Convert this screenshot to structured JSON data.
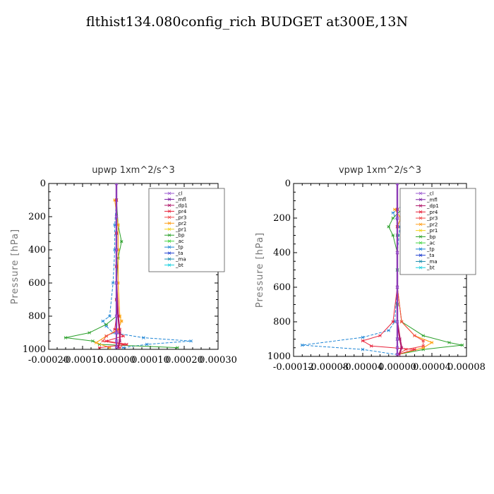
{
  "figure_title": "flthist134.080config_rich  BUDGET at300E,13N",
  "series_styles": [
    {
      "name": "_cl",
      "color": "#9b59d0"
    },
    {
      "name": "_mfl",
      "color": "#7a1fa2"
    },
    {
      "name": "_dp1",
      "color": "#b0186a"
    },
    {
      "name": "_pr4",
      "color": "#e8213a"
    },
    {
      "name": "_pr3",
      "color": "#f04848"
    },
    {
      "name": "_pr2",
      "color": "#ff9f1a"
    },
    {
      "name": "_pr1",
      "color": "#f2d21a"
    },
    {
      "name": "_bp",
      "color": "#2aa02a"
    },
    {
      "name": "_ac",
      "color": "#45d545"
    },
    {
      "name": "_tp",
      "color": "#1f86d6"
    },
    {
      "name": "_ta",
      "color": "#2040d0"
    },
    {
      "name": "_ma",
      "color": "#1f8fb0"
    },
    {
      "name": "_bt",
      "color": "#18d0e0"
    }
  ],
  "chart_data": [
    {
      "type": "line",
      "title": "upwp   1xm^2/s^3",
      "ylabel": "Pressure [hPa]",
      "xlabel": "",
      "xlim": [
        -0.0002,
        0.0003
      ],
      "ylim": [
        1000,
        0
      ],
      "xticks": [
        -0.0002,
        -0.0001,
        0.0,
        0.0001,
        0.0002,
        0.0003
      ],
      "xtick_labels": [
        "-0.00020",
        "-0.00010",
        "0.00000",
        "0.00010",
        "0.00020",
        "0.00030"
      ],
      "yticks": [
        0,
        200,
        400,
        600,
        800,
        1000
      ],
      "ytick_labels": [
        "0",
        "200",
        "400",
        "600",
        "800",
        "1000"
      ],
      "legend_position": "top-right",
      "grid": false,
      "series": [
        {
          "name": "_cl",
          "p": [
            0,
            200,
            400,
            600,
            800,
            900,
            950,
            990
          ],
          "x": [
            0,
            0,
            0,
            0,
            0,
            0,
            0,
            0
          ]
        },
        {
          "name": "_mfl",
          "p": [
            0,
            200,
            400,
            600,
            800,
            900,
            950,
            990
          ],
          "x": [
            0,
            0,
            0,
            0,
            0,
            0,
            0,
            0
          ]
        },
        {
          "name": "_dp1",
          "p": [
            0,
            200,
            400,
            600,
            800,
            900,
            950,
            990
          ],
          "x": [
            0,
            0,
            0,
            0,
            5e-06,
            1e-05,
            1e-05,
            5e-06
          ]
        },
        {
          "name": "_pr4",
          "p": [
            100,
            300,
            500,
            700,
            800,
            880,
            920,
            950,
            970,
            990
          ],
          "x": [
            0,
            0,
            0,
            0,
            0,
            -5e-06,
            2e-05,
            -3e-05,
            3e-05,
            -5e-05
          ]
        },
        {
          "name": "_pr3",
          "p": [
            100,
            300,
            500,
            700,
            800,
            880,
            920,
            950,
            970,
            990
          ],
          "x": [
            0,
            0,
            0,
            0,
            5e-06,
            1e-05,
            -3e-05,
            -4e-05,
            2e-05,
            1e-05
          ]
        },
        {
          "name": "_pr2",
          "p": [
            100,
            250,
            400,
            600,
            800,
            830,
            880,
            920,
            960,
            990
          ],
          "x": [
            -5e-06,
            5e-06,
            5e-06,
            5e-06,
            1e-05,
            1.5e-05,
            5e-06,
            -3e-05,
            -6e-05,
            -2e-05
          ]
        },
        {
          "name": "_pr1",
          "p": [
            100,
            250,
            400,
            600,
            800,
            830,
            880,
            920,
            960,
            990
          ],
          "x": [
            -5e-06,
            5e-06,
            5e-06,
            5e-06,
            1e-05,
            1.5e-05,
            5e-06,
            -3e-05,
            -6e-05,
            -2e-05
          ]
        },
        {
          "name": "_bp",
          "p": [
            100,
            250,
            350,
            450,
            600,
            800,
            850,
            900,
            930,
            950,
            970,
            990
          ],
          "x": [
            0,
            5e-06,
            1.5e-05,
            5e-06,
            0,
            0,
            -3e-05,
            -8e-05,
            -0.00015,
            -7e-05,
            -5e-05,
            0.00018
          ]
        },
        {
          "name": "_ac",
          "p": [
            100,
            300,
            500,
            700,
            900,
            990
          ],
          "x": [
            0,
            0,
            0,
            0,
            0,
            0
          ]
        },
        {
          "name": "_tp",
          "p": [
            100,
            250,
            400,
            600,
            800,
            830,
            860,
            900,
            930,
            950,
            970,
            990
          ],
          "x": [
            0,
            -5e-06,
            -5e-06,
            -1e-05,
            -2e-05,
            -4e-05,
            -3e-05,
            -1e-05,
            8e-05,
            0.00022,
            9e-05,
            2e-05
          ]
        },
        {
          "name": "_ta",
          "p": [
            100,
            300,
            500,
            700,
            900,
            990
          ],
          "x": [
            0,
            0,
            0,
            0,
            0,
            0
          ]
        },
        {
          "name": "_ma",
          "p": [
            100,
            300,
            500,
            700,
            900,
            990
          ],
          "x": [
            0,
            0,
            0,
            0,
            0,
            0
          ]
        },
        {
          "name": "_bt",
          "p": [
            100,
            300,
            500,
            700,
            900,
            990
          ],
          "x": [
            0,
            0,
            0,
            0,
            0,
            0
          ]
        }
      ]
    },
    {
      "type": "line",
      "title": "vpwp   1xm^2/s^3",
      "ylabel": "Pressure [hPa]",
      "xlabel": "",
      "xlim": [
        -0.00012,
        8e-05
      ],
      "ylim": [
        1000,
        0
      ],
      "xticks": [
        -0.00012,
        -8e-05,
        -4e-05,
        0.0,
        4e-05,
        8e-05
      ],
      "xtick_labels": [
        "-0.00012",
        "-0.00008",
        "-0.00004",
        "0.00000",
        "0.00004",
        "0.00008"
      ],
      "yticks": [
        0,
        200,
        400,
        600,
        800,
        1000
      ],
      "ytick_labels": [
        "0",
        "200",
        "400",
        "600",
        "800",
        "1000"
      ],
      "legend_position": "top-right",
      "grid": false,
      "series": [
        {
          "name": "_cl",
          "p": [
            0,
            200,
            400,
            600,
            800,
            900,
            950,
            990
          ],
          "x": [
            0,
            0,
            0,
            0,
            0,
            0,
            0,
            0
          ]
        },
        {
          "name": "_mfl",
          "p": [
            0,
            200,
            400,
            600,
            800,
            900,
            950,
            990
          ],
          "x": [
            0,
            0,
            0,
            0,
            0,
            0,
            0,
            0
          ]
        },
        {
          "name": "_dp1",
          "p": [
            0,
            200,
            400,
            600,
            800,
            900,
            950,
            990
          ],
          "x": [
            0,
            0,
            0,
            0,
            0,
            3e-06,
            5e-06,
            2e-06
          ]
        },
        {
          "name": "_pr4",
          "p": [
            150,
            250,
            400,
            600,
            800,
            880,
            910,
            940,
            960,
            990
          ],
          "x": [
            0,
            0,
            0,
            0,
            -5e-06,
            -2e-05,
            -4e-05,
            -3e-05,
            2e-05,
            0
          ]
        },
        {
          "name": "_pr3",
          "p": [
            150,
            250,
            400,
            600,
            800,
            880,
            910,
            940,
            960,
            990
          ],
          "x": [
            0,
            0,
            0,
            0,
            5e-06,
            2e-05,
            3e-05,
            3e-05,
            1e-05,
            0
          ]
        },
        {
          "name": "_pr2",
          "p": [
            150,
            200,
            250,
            400,
            600,
            800,
            880,
            920,
            950,
            990
          ],
          "x": [
            -3e-06,
            4e-06,
            0,
            0,
            0,
            5e-06,
            2e-05,
            4e-05,
            3e-05,
            0
          ]
        },
        {
          "name": "_pr1",
          "p": [
            150,
            200,
            250,
            400,
            600,
            800,
            880,
            920,
            950,
            990
          ],
          "x": [
            -3e-06,
            4e-06,
            0,
            0,
            0,
            5e-06,
            2e-05,
            4e-05,
            3e-05,
            0
          ]
        },
        {
          "name": "_bp",
          "p": [
            150,
            200,
            250,
            300,
            400,
            600,
            800,
            880,
            920,
            935,
            960,
            990
          ],
          "x": [
            5e-06,
            -5e-06,
            -1e-05,
            -5e-06,
            0,
            0,
            5e-06,
            3e-05,
            6e-05,
            7.5e-05,
            3e-05,
            0
          ]
        },
        {
          "name": "_ac",
          "p": [
            150,
            300,
            500,
            700,
            900,
            990
          ],
          "x": [
            0,
            0,
            0,
            0,
            0,
            0
          ]
        },
        {
          "name": "_tp",
          "p": [
            130,
            170,
            250,
            400,
            600,
            800,
            850,
            890,
            935,
            960,
            990
          ],
          "x": [
            5e-06,
            -5e-06,
            3e-06,
            0,
            0,
            -3e-06,
            -1e-05,
            -4e-05,
            -0.00011,
            -4e-05,
            0
          ]
        },
        {
          "name": "_ta",
          "p": [
            150,
            300,
            500,
            700,
            900,
            990
          ],
          "x": [
            0,
            0,
            0,
            0,
            0,
            0
          ]
        },
        {
          "name": "_ma",
          "p": [
            150,
            300,
            500,
            700,
            900,
            990
          ],
          "x": [
            0,
            0,
            0,
            0,
            0,
            0
          ]
        },
        {
          "name": "_bt",
          "p": [
            150,
            300,
            500,
            700,
            900,
            990
          ],
          "x": [
            0,
            0,
            0,
            0,
            0,
            0
          ]
        }
      ]
    }
  ]
}
